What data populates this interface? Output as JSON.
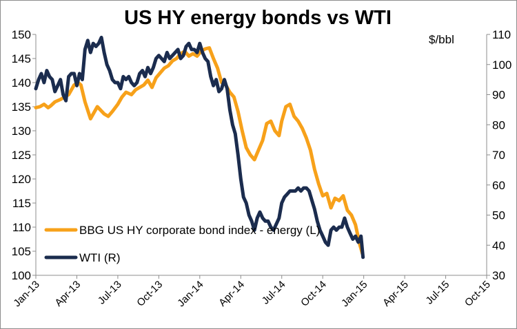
{
  "chart_data": {
    "type": "line",
    "title": "US HY energy bonds vs WTI",
    "right_axis_unit": "$/bbl",
    "x_ticks": [
      "Jan-13",
      "Apr-13",
      "Jul-13",
      "Oct-13",
      "Jan-14",
      "Apr-14",
      "Jul-14",
      "Oct-14",
      "Jan-15",
      "Apr-15",
      "Jul-15",
      "Oct-15"
    ],
    "y_left": {
      "min": 100,
      "max": 150,
      "ticks": [
        100,
        105,
        110,
        115,
        120,
        125,
        130,
        135,
        140,
        145,
        150
      ]
    },
    "y_right": {
      "min": 30,
      "max": 110,
      "ticks": [
        30,
        40,
        50,
        60,
        70,
        80,
        90,
        100,
        110
      ]
    },
    "grid": false,
    "legend_position": "bottom-left",
    "series": [
      {
        "name": "BBG US HY corporate bond index - energy (L)",
        "axis": "left",
        "color": "#F7A11A",
        "x": [
          0,
          0.3,
          0.6,
          0.9,
          1.1,
          1.4,
          1.8,
          2.1,
          2.4,
          2.8,
          3.1,
          3.3,
          3.6,
          4.0,
          4.5,
          5.0,
          5.3,
          5.6,
          6.0,
          6.3,
          6.6,
          7.0,
          7.3,
          7.6,
          7.9,
          8.2,
          8.5,
          8.8,
          9.1,
          9.4,
          9.7,
          10.0,
          10.3,
          10.6,
          10.9,
          11.2,
          11.5,
          11.8,
          12.1,
          12.4,
          12.7,
          13.0,
          13.3,
          13.6,
          13.9,
          14.2,
          14.5,
          14.8,
          15.1,
          15.4,
          15.7,
          16.0,
          16.3,
          16.6,
          16.9,
          17.2,
          17.5,
          17.8,
          18.0,
          18.3,
          18.6,
          18.9,
          19.2,
          19.5,
          19.8,
          20.1,
          20.4,
          20.7,
          21.0,
          21.3,
          21.6,
          21.9,
          22.2,
          22.5,
          22.8,
          23.1,
          23.4,
          23.7,
          23.9
        ],
        "values": [
          134.8,
          135.0,
          135.5,
          134.8,
          135.2,
          136.0,
          136.5,
          137.0,
          137.5,
          139.5,
          140.0,
          139.5,
          136.0,
          132.5,
          135.0,
          133.5,
          133.0,
          134.0,
          135.5,
          137.0,
          138.0,
          137.5,
          138.5,
          139.0,
          139.5,
          140.5,
          139.0,
          141.0,
          142.0,
          143.0,
          143.5,
          144.5,
          145.0,
          146.0,
          146.5,
          145.5,
          146.0,
          145.5,
          146.5,
          147.0,
          147.2,
          145.0,
          143.0,
          140.0,
          139.5,
          138.0,
          137.0,
          134.0,
          130.0,
          126.5,
          125.0,
          124.0,
          126.0,
          128.0,
          131.5,
          132.0,
          130.0,
          129.0,
          132.0,
          135.0,
          135.5,
          133.0,
          132.0,
          130.5,
          128.5,
          126.0,
          122.0,
          119.0,
          116.5,
          117.0,
          114.0,
          116.0,
          115.5,
          116.5,
          113.5,
          112.5,
          110.5,
          106.5,
          104.5
        ]
      },
      {
        "name": "WTI (R)",
        "axis": "right",
        "color": "#1B2C4E",
        "x": [
          0,
          0.2,
          0.4,
          0.6,
          0.8,
          1.0,
          1.2,
          1.4,
          1.6,
          1.8,
          2.0,
          2.2,
          2.4,
          2.6,
          2.8,
          3.0,
          3.2,
          3.4,
          3.6,
          3.8,
          4.0,
          4.2,
          4.4,
          4.6,
          4.8,
          5.0,
          5.2,
          5.4,
          5.6,
          5.8,
          6.0,
          6.2,
          6.4,
          6.6,
          6.8,
          7.0,
          7.2,
          7.4,
          7.6,
          7.8,
          8.0,
          8.2,
          8.4,
          8.6,
          8.8,
          9.0,
          9.2,
          9.4,
          9.6,
          9.8,
          10.0,
          10.2,
          10.4,
          10.6,
          10.8,
          11.0,
          11.2,
          11.4,
          11.6,
          11.8,
          12.0,
          12.2,
          12.4,
          12.6,
          12.8,
          13.0,
          13.2,
          13.4,
          13.6,
          13.8,
          14.0,
          14.2,
          14.4,
          14.6,
          14.8,
          15.0,
          15.2,
          15.4,
          15.6,
          15.8,
          16.0,
          16.2,
          16.4,
          16.6,
          16.8,
          17.0,
          17.2,
          17.4,
          17.6,
          17.8,
          18.0,
          18.2,
          18.4,
          18.6,
          18.8,
          19.0,
          19.2,
          19.4,
          19.6,
          19.8,
          20.0,
          20.2,
          20.4,
          20.6,
          20.8,
          21.0,
          21.2,
          21.4,
          21.6,
          21.8,
          22.0,
          22.2,
          22.4,
          22.6,
          22.8,
          23.0,
          23.2,
          23.4,
          23.6,
          23.8,
          23.95
        ],
        "values": [
          92,
          95,
          97,
          94,
          98,
          96,
          95,
          91,
          93,
          95,
          90,
          88,
          96,
          97,
          97,
          93,
          97,
          95,
          105,
          108,
          104,
          107,
          106,
          107,
          109,
          104,
          100,
          98,
          95,
          94,
          94,
          92,
          96,
          95,
          96,
          94,
          93,
          94,
          97,
          98,
          96,
          99,
          97,
          99,
          102,
          103,
          102,
          101,
          104,
          102,
          103,
          104,
          105,
          102,
          103,
          106,
          107,
          105,
          105,
          104,
          107,
          104,
          102,
          101,
          96,
          93,
          95,
          91,
          92,
          95,
          92,
          85,
          80,
          77,
          70,
          62,
          56,
          54,
          50,
          48,
          45,
          49,
          51,
          49,
          48,
          48,
          46,
          45,
          47,
          49,
          54,
          56,
          57,
          58,
          58,
          58,
          59,
          58,
          59,
          59,
          58,
          55,
          52,
          48,
          45,
          43,
          41,
          40,
          45,
          46,
          45,
          46,
          46,
          49,
          46,
          44,
          42,
          43,
          41,
          43,
          36
        ]
      }
    ]
  }
}
